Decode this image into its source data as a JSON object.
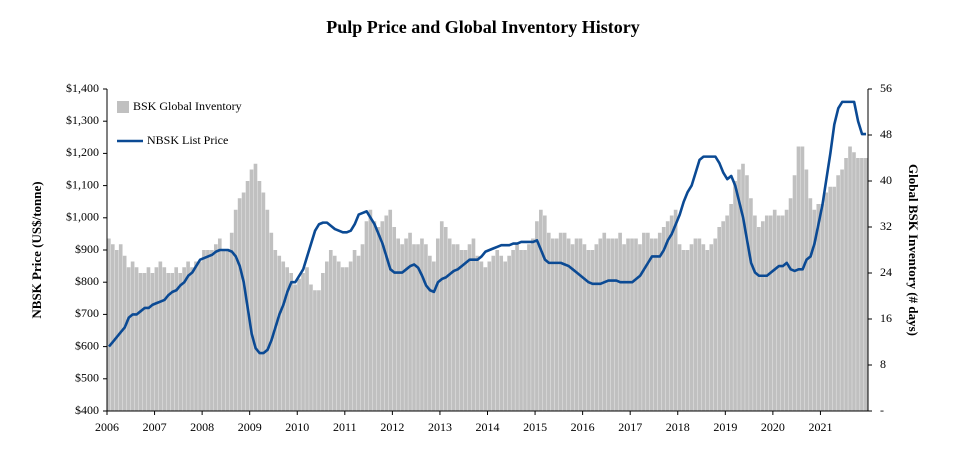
{
  "chart_data": {
    "type": "bar-line",
    "title": "Pulp Price and Global Inventory History",
    "y_label": "NBSK Price (US$/tonne)",
    "y2_label": "Global BSK Inventory (# days)",
    "legend": "top-left",
    "categories": [
      "2006",
      null,
      null,
      null,
      null,
      null,
      null,
      null,
      null,
      null,
      null,
      null,
      "2007",
      null,
      null,
      null,
      null,
      null,
      null,
      null,
      null,
      null,
      null,
      null,
      "2008",
      null,
      null,
      null,
      null,
      null,
      null,
      null,
      null,
      null,
      null,
      null,
      "2009",
      null,
      null,
      null,
      null,
      null,
      null,
      null,
      null,
      null,
      null,
      null,
      "2010",
      null,
      null,
      null,
      null,
      null,
      null,
      null,
      null,
      null,
      null,
      null,
      "2011",
      null,
      null,
      null,
      null,
      null,
      null,
      null,
      null,
      null,
      null,
      null,
      "2012",
      null,
      null,
      null,
      null,
      null,
      null,
      null,
      null,
      null,
      null,
      null,
      "2013",
      null,
      null,
      null,
      null,
      null,
      null,
      null,
      null,
      null,
      null,
      null,
      "2014",
      null,
      null,
      null,
      null,
      null,
      null,
      null,
      null,
      null,
      null,
      null,
      "2015",
      null,
      null,
      null,
      null,
      null,
      null,
      null,
      null,
      null,
      null,
      null,
      "2016",
      null,
      null,
      null,
      null,
      null,
      null,
      null,
      null,
      null,
      null,
      null,
      "2017",
      null,
      null,
      null,
      null,
      null,
      null,
      null,
      null,
      null,
      null,
      null,
      "2018",
      null,
      null,
      null,
      null,
      null,
      null,
      null,
      null,
      null,
      null,
      null,
      "2019",
      null,
      null,
      null,
      null,
      null,
      null,
      null,
      null,
      null,
      null,
      null,
      "2020",
      null,
      null,
      null,
      null,
      null,
      null,
      null,
      null,
      null,
      null,
      null,
      "2021",
      null,
      null,
      null,
      null,
      null,
      null,
      null,
      null,
      null,
      null,
      null
    ],
    "series": [
      {
        "name": "BSK Global Inventory",
        "type": "bar",
        "axis": "y2",
        "color": "#c0c0c0",
        "values": [
          30,
          29,
          28,
          29,
          27,
          25,
          26,
          25,
          24,
          24,
          25,
          24,
          25,
          26,
          25,
          24,
          24,
          25,
          24,
          25,
          26,
          25,
          26,
          26,
          28,
          28,
          28,
          29,
          30,
          28,
          28,
          31,
          35,
          37,
          38,
          40,
          42,
          43,
          40,
          38,
          35,
          31,
          28,
          27,
          26,
          25,
          24,
          22,
          23,
          24,
          25,
          22,
          21,
          21,
          24,
          26,
          28,
          27,
          26,
          25,
          25,
          26,
          28,
          27,
          29,
          33,
          35,
          33,
          32,
          33,
          34,
          35,
          32,
          30,
          29,
          30,
          31,
          29,
          29,
          30,
          29,
          27,
          26,
          30,
          33,
          32,
          30,
          29,
          29,
          28,
          28,
          29,
          30,
          27,
          26,
          25,
          26,
          27,
          28,
          27,
          26,
          27,
          28,
          29,
          28,
          28,
          29,
          30,
          33,
          35,
          34,
          31,
          30,
          30,
          31,
          31,
          30,
          29,
          30,
          30,
          29,
          28,
          28,
          29,
          30,
          31,
          30,
          30,
          30,
          31,
          29,
          30,
          30,
          30,
          29,
          31,
          31,
          30,
          30,
          31,
          32,
          33,
          34,
          35,
          29,
          28,
          28,
          29,
          30,
          30,
          29,
          28,
          29,
          30,
          32,
          33,
          34,
          36,
          40,
          42,
          43,
          41,
          37,
          34,
          32,
          33,
          34,
          34,
          35,
          34,
          34,
          35,
          37,
          41,
          46,
          46,
          42,
          37,
          35,
          36,
          36,
          38,
          39,
          39,
          41,
          42,
          44,
          46,
          45,
          44,
          44,
          44
        ]
      },
      {
        "name": "NBSK List Price",
        "type": "line",
        "axis": "y",
        "color": "#0b4a94",
        "values": [
          600,
          615,
          630,
          645,
          660,
          690,
          700,
          700,
          710,
          720,
          720,
          730,
          735,
          740,
          745,
          760,
          770,
          775,
          790,
          800,
          820,
          830,
          850,
          870,
          875,
          880,
          885,
          895,
          900,
          900,
          900,
          895,
          880,
          850,
          800,
          720,
          640,
          595,
          580,
          580,
          590,
          620,
          660,
          700,
          730,
          770,
          800,
          800,
          820,
          840,
          880,
          920,
          960,
          980,
          985,
          985,
          975,
          965,
          960,
          955,
          955,
          960,
          980,
          1010,
          1015,
          1020,
          1000,
          980,
          950,
          920,
          880,
          840,
          830,
          830,
          830,
          840,
          850,
          855,
          845,
          820,
          790,
          775,
          770,
          800,
          810,
          815,
          825,
          835,
          840,
          850,
          860,
          870,
          870,
          870,
          880,
          895,
          900,
          905,
          910,
          915,
          915,
          915,
          920,
          920,
          925,
          925,
          925,
          925,
          930,
          900,
          870,
          860,
          860,
          860,
          860,
          855,
          850,
          840,
          830,
          820,
          810,
          800,
          795,
          795,
          795,
          800,
          805,
          805,
          805,
          800,
          800,
          800,
          800,
          810,
          820,
          840,
          860,
          880,
          880,
          880,
          900,
          930,
          950,
          980,
          1010,
          1050,
          1080,
          1100,
          1140,
          1180,
          1190,
          1190,
          1190,
          1190,
          1170,
          1140,
          1120,
          1130,
          1100,
          1050,
          1000,
          930,
          860,
          830,
          820,
          820,
          820,
          830,
          840,
          850,
          850,
          860,
          840,
          835,
          840,
          840,
          870,
          880,
          920,
          980,
          1040,
          1120,
          1200,
          1290,
          1340,
          1360,
          1360,
          1360,
          1360,
          1300,
          1260,
          1260
        ]
      }
    ],
    "ylim": [
      400,
      1400
    ],
    "yticks": [
      {
        "value": 400,
        "label": "$400"
      },
      {
        "value": 500,
        "label": "$500"
      },
      {
        "value": 600,
        "label": "$600"
      },
      {
        "value": 700,
        "label": "$700"
      },
      {
        "value": 800,
        "label": "$800"
      },
      {
        "value": 900,
        "label": "$900"
      },
      {
        "value": 1000,
        "label": "$1,000"
      },
      {
        "value": 1100,
        "label": "$1,100"
      },
      {
        "value": 1200,
        "label": "$1,200"
      },
      {
        "value": 1300,
        "label": "$1,300"
      },
      {
        "value": 1400,
        "label": "$1,400"
      }
    ],
    "y2lim": [
      0,
      56
    ],
    "y2ticks": [
      {
        "value": 0,
        "label": "-"
      },
      8,
      16,
      24,
      32,
      40,
      48,
      56
    ]
  }
}
